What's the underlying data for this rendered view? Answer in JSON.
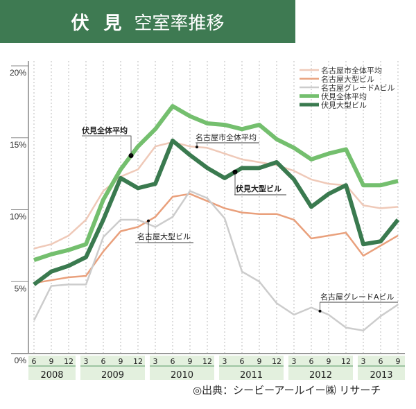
{
  "title": {
    "place": "伏 見",
    "subject": "空室率推移",
    "color": "#3e7a52"
  },
  "source": "◎出典：シービーアールイー㈱ リサーチ",
  "chart_data": {
    "type": "line",
    "title": "伏 見 空室率推移",
    "xlabel": "",
    "ylabel": "",
    "ylim": [
      0,
      20
    ],
    "yticks": [
      "0%",
      "5%",
      "10%",
      "15%",
      "20%"
    ],
    "grid": "vertical dotted",
    "legend": "top-right",
    "x_months": [
      "6",
      "9",
      "12",
      "3",
      "6",
      "9",
      "12",
      "3",
      "6",
      "9",
      "12",
      "3",
      "6",
      "9",
      "12",
      "3",
      "6",
      "9",
      "12",
      "3",
      "6",
      "9"
    ],
    "years": [
      {
        "label": "2008",
        "count": 3
      },
      {
        "label": "2009",
        "count": 4
      },
      {
        "label": "2010",
        "count": 4
      },
      {
        "label": "2011",
        "count": 4
      },
      {
        "label": "2012",
        "count": 4
      },
      {
        "label": "2013",
        "count": 3
      }
    ],
    "series": [
      {
        "name": "名古屋市全体平均",
        "color": "#efc9b8",
        "width": 2.5,
        "values": [
          7.3,
          7.6,
          8.2,
          9.3,
          11.3,
          12.3,
          12.8,
          14.4,
          14.7,
          14.4,
          14.3,
          13.9,
          13.5,
          13.3,
          13.1,
          12.7,
          12.1,
          11.8,
          11.7,
          10.3,
          10.1,
          10.2
        ]
      },
      {
        "name": "名古屋大型ビル",
        "color": "#e9a07c",
        "width": 2.5,
        "values": [
          4.9,
          5.1,
          5.3,
          5.4,
          7.1,
          8.5,
          8.8,
          9.5,
          10.9,
          11.1,
          10.6,
          10.1,
          9.8,
          9.7,
          9.7,
          9.3,
          8.0,
          8.2,
          8.4,
          6.8,
          7.5,
          8.2
        ]
      },
      {
        "name": "名古屋グレードAビル",
        "color": "#cccccc",
        "width": 2.5,
        "values": [
          2.3,
          4.7,
          4.8,
          4.8,
          8.1,
          9.3,
          9.3,
          8.8,
          9.5,
          11.3,
          10.8,
          9.4,
          5.7,
          5.0,
          3.5,
          2.7,
          3.2,
          2.7,
          1.8,
          1.6,
          2.6,
          3.4
        ]
      },
      {
        "name": "伏見全体平均",
        "color": "#74bf6e",
        "width": 6,
        "values": [
          6.5,
          6.9,
          7.2,
          7.6,
          10.7,
          12.8,
          14.4,
          15.6,
          17.2,
          16.5,
          16.0,
          15.9,
          15.6,
          15.9,
          14.9,
          14.3,
          13.5,
          13.9,
          14.2,
          11.7,
          11.7,
          12.0
        ]
      },
      {
        "name": "伏見大型ビル",
        "color": "#3a7a4f",
        "width": 6,
        "values": [
          4.8,
          5.7,
          6.1,
          6.7,
          9.3,
          12.2,
          11.5,
          11.8,
          14.8,
          13.8,
          12.9,
          12.2,
          12.9,
          12.9,
          13.3,
          12.1,
          10.2,
          11.1,
          11.7,
          7.6,
          7.8,
          9.3
        ]
      }
    ],
    "annotations": [
      {
        "text": "伏見全体平均",
        "series": 3,
        "index": 5.6
      },
      {
        "text": "名古屋市全体平均",
        "series": 0,
        "index": 9.4
      },
      {
        "text": "伏見大型ビル",
        "series": 4,
        "index": 11.6
      },
      {
        "text": "名古屋大型ビル",
        "series": 1,
        "index": 6.6
      },
      {
        "text": "名古屋グレードAビル",
        "series": 2,
        "index": 16.5
      }
    ]
  }
}
